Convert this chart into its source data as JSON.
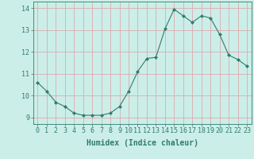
{
  "x": [
    0,
    1,
    2,
    3,
    4,
    5,
    6,
    7,
    8,
    9,
    10,
    11,
    12,
    13,
    14,
    15,
    16,
    17,
    18,
    19,
    20,
    21,
    22,
    23
  ],
  "y": [
    10.6,
    10.2,
    9.7,
    9.5,
    9.2,
    9.1,
    9.1,
    9.1,
    9.2,
    9.5,
    10.2,
    11.1,
    11.7,
    11.75,
    13.05,
    13.95,
    13.65,
    13.35,
    13.65,
    13.55,
    12.8,
    11.85,
    11.65,
    11.35
  ],
  "xlim": [
    -0.5,
    23.5
  ],
  "ylim": [
    8.7,
    14.3
  ],
  "yticks": [
    9,
    10,
    11,
    12,
    13,
    14
  ],
  "xticks": [
    0,
    1,
    2,
    3,
    4,
    5,
    6,
    7,
    8,
    9,
    10,
    11,
    12,
    13,
    14,
    15,
    16,
    17,
    18,
    19,
    20,
    21,
    22,
    23
  ],
  "xlabel": "Humidex (Indice chaleur)",
  "line_color": "#2e7d6e",
  "marker": "D",
  "marker_size": 2,
  "bg_color": "#cceee8",
  "grid_color": "#dbaab0",
  "tick_color": "#2e7d6e",
  "label_color": "#2e7d6e",
  "font_size_axis": 6,
  "font_size_xlabel": 7
}
